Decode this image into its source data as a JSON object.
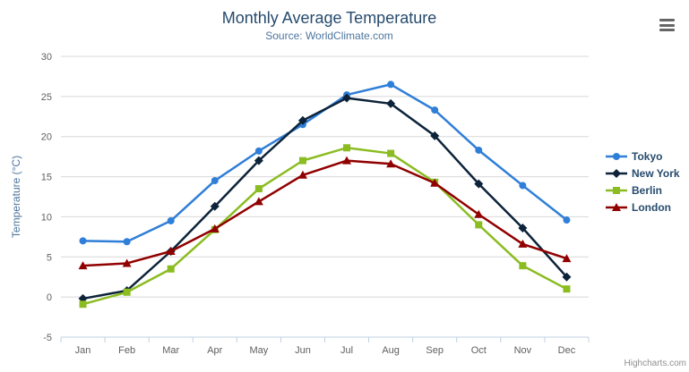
{
  "chart_data": {
    "type": "line",
    "title": "Monthly Average Temperature",
    "subtitle": "Source: WorldClimate.com",
    "ylabel": "Temperature (°C)",
    "xlabel": "",
    "ylim": [
      -5,
      30
    ],
    "ytick_step": 5,
    "grid": true,
    "legend_position": "right",
    "categories": [
      "Jan",
      "Feb",
      "Mar",
      "Apr",
      "May",
      "Jun",
      "Jul",
      "Aug",
      "Sep",
      "Oct",
      "Nov",
      "Dec"
    ],
    "series": [
      {
        "name": "Tokyo",
        "color": "#2f7ed8",
        "marker": "circle",
        "values": [
          7.0,
          6.9,
          9.5,
          14.5,
          18.2,
          21.5,
          25.2,
          26.5,
          23.3,
          18.3,
          13.9,
          9.6
        ]
      },
      {
        "name": "New York",
        "color": "#0d233a",
        "marker": "diamond",
        "values": [
          -0.2,
          0.8,
          5.7,
          11.3,
          17.0,
          22.0,
          24.8,
          24.1,
          20.1,
          14.1,
          8.6,
          2.5
        ]
      },
      {
        "name": "Berlin",
        "color": "#8bbc21",
        "marker": "square",
        "values": [
          -0.9,
          0.6,
          3.5,
          8.4,
          13.5,
          17.0,
          18.6,
          17.9,
          14.3,
          9.0,
          3.9,
          1.0
        ]
      },
      {
        "name": "London",
        "color": "#910000",
        "marker": "triangle",
        "values": [
          3.9,
          4.2,
          5.7,
          8.5,
          11.9,
          15.2,
          17.0,
          16.6,
          14.2,
          10.3,
          6.6,
          4.8
        ]
      }
    ]
  },
  "credits": {
    "label": "Highcharts.com"
  },
  "menu": {
    "icon": "hamburger-icon"
  },
  "theme": {
    "title_color": "#274b6d",
    "subtitle_color": "#4d759e",
    "axis_title_color": "#4d759e",
    "axis_label_color": "#606060",
    "gridline_color": "#d8d8d8",
    "axis_line_color": "#c0d0e0",
    "legend_text_color": "#274b6d",
    "credits_color": "#909090"
  }
}
